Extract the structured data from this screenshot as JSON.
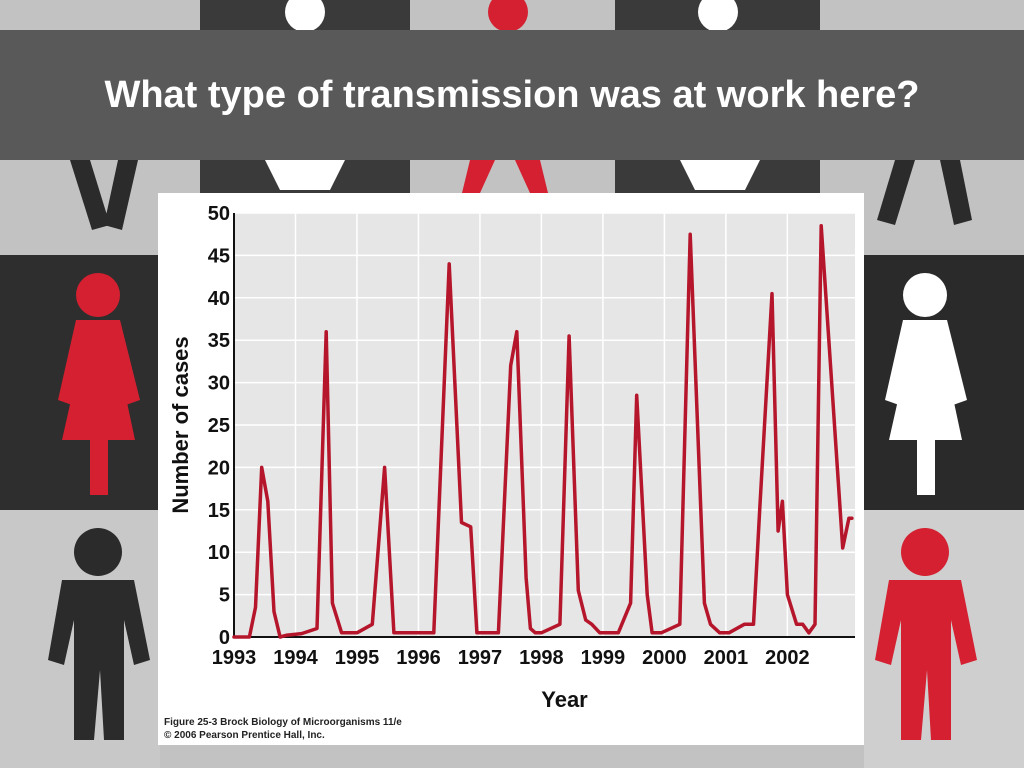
{
  "slide": {
    "title": "What type of transmission was at work here?"
  },
  "figure": {
    "caption_line1": "Figure 25-3  Brock Biology of Microorganisms 11/e",
    "caption_line2": "© 2006 Pearson Prentice Hall, Inc."
  },
  "colors": {
    "line": "#b5162b",
    "plot_bg": "#e6e6e6",
    "grid": "#ffffff",
    "title_bar": "#595959",
    "figure_red": "#d42030",
    "figure_dark": "#2b2b2b"
  },
  "background_figures": [
    {
      "kind": "female-figure-icon",
      "color": "figure_red"
    },
    {
      "kind": "female-figure-icon",
      "color": "white"
    },
    {
      "kind": "male-figure-icon",
      "color": "figure_dark"
    },
    {
      "kind": "male-figure-icon",
      "color": "figure_red"
    }
  ],
  "chart_data": {
    "type": "line",
    "xlabel": "Year",
    "ylabel": "Number of cases",
    "xlim": [
      1993,
      2003.1
    ],
    "ylim": [
      0,
      50
    ],
    "yticks": [
      0,
      5,
      10,
      15,
      20,
      25,
      30,
      35,
      40,
      45,
      50
    ],
    "xticks": [
      "1993",
      "1994",
      "1995",
      "1996",
      "1997",
      "1998",
      "1999",
      "2000",
      "2001",
      "2002"
    ],
    "grid": true,
    "series": [
      {
        "color": "#b5162b",
        "x": [
          1993.0,
          1993.25,
          1993.35,
          1993.45,
          1993.55,
          1993.65,
          1993.75,
          1993.85,
          1994.1,
          1994.35,
          1994.5,
          1994.6,
          1994.75,
          1994.9,
          1995.0,
          1995.25,
          1995.45,
          1995.6,
          1995.75,
          1995.85,
          1996.0,
          1996.25,
          1996.5,
          1996.7,
          1996.85,
          1996.95,
          1997.05,
          1997.1,
          1997.3,
          1997.5,
          1997.6,
          1997.75,
          1997.82,
          1997.9,
          1998.0,
          1998.3,
          1998.45,
          1998.6,
          1998.72,
          1998.82,
          1998.95,
          1999.25,
          1999.45,
          1999.55,
          1999.72,
          1999.8,
          1999.95,
          2000.25,
          2000.42,
          2000.65,
          2000.75,
          2000.9,
          2001.05,
          2001.3,
          2001.45,
          2001.55,
          2001.75,
          2001.85,
          2001.92,
          2002.0,
          2002.15,
          2002.25,
          2002.35,
          2002.45,
          2002.55,
          2002.9,
          2003.0,
          2003.05
        ],
        "y": [
          0,
          0,
          3.5,
          20,
          16,
          3,
          0,
          0.2,
          0.4,
          1,
          36,
          4,
          0.5,
          0.5,
          0.5,
          1.5,
          20,
          0.5,
          0.5,
          0.5,
          0.5,
          0.5,
          44,
          13.5,
          13,
          0.5,
          0.5,
          0.5,
          0.5,
          32,
          36,
          7,
          1,
          0.5,
          0.5,
          1.5,
          35.5,
          5.5,
          2,
          1.5,
          0.5,
          0.5,
          4,
          28.5,
          5,
          0.5,
          0.5,
          1.5,
          47.5,
          4,
          1.5,
          0.5,
          0.5,
          1.5,
          1.5,
          15,
          40.5,
          12.5,
          16,
          5,
          1.5,
          1.5,
          0.5,
          1.5,
          48.5,
          10.5,
          14,
          14
        ]
      }
    ]
  }
}
